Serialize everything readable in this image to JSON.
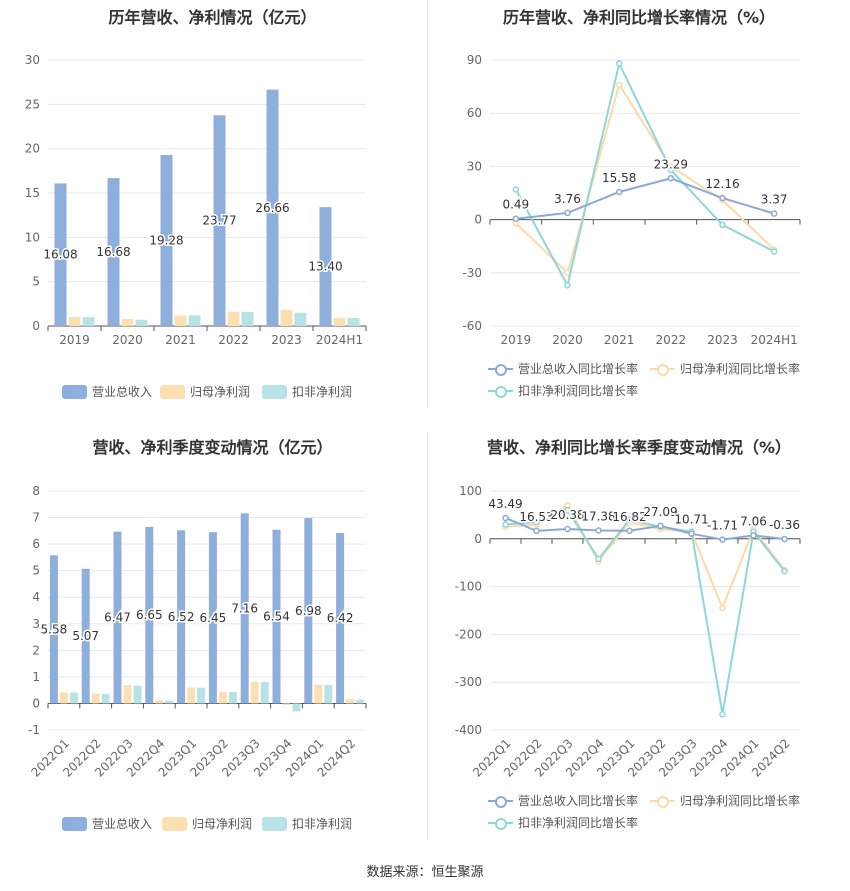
{
  "footer": "数据来源：恒生聚源",
  "legend_labels": {
    "revenue": "营业总收入",
    "net_profit": "归母净利润",
    "deducted_profit": "扣非净利润",
    "revenue_growth": "营业总收入同比增长率",
    "net_profit_growth": "归母净利润同比增长率",
    "deducted_growth": "扣非净利润同比增长率"
  },
  "colors": {
    "revenue": "#8eaedc",
    "net_profit": "#fde0b2",
    "deducted_profit": "#b8e3e6",
    "revenue_line": "#8aa9d6",
    "net_line": "#fcd9a6",
    "deducted_line": "#8ed6d8"
  },
  "chart_data": [
    {
      "type": "bar",
      "title": "历年营收、净利情况（亿元）",
      "categories": [
        "2019",
        "2020",
        "2021",
        "2022",
        "2023",
        "2024H1"
      ],
      "ylim": [
        0,
        30
      ],
      "yticks": [
        0,
        5,
        10,
        15,
        20,
        25,
        30
      ],
      "series": [
        {
          "name": "营业总收入",
          "values": [
            16.08,
            16.68,
            19.28,
            23.77,
            26.66,
            13.4
          ],
          "labels": [
            "16.08",
            "16.68",
            "19.28",
            "23.77",
            "26.66",
            "13.40"
          ]
        },
        {
          "name": "归母净利润",
          "values": [
            1.0,
            0.8,
            1.2,
            1.6,
            1.8,
            0.9
          ]
        },
        {
          "name": "扣非净利润",
          "values": [
            1.0,
            0.7,
            1.2,
            1.6,
            1.5,
            0.9
          ]
        }
      ],
      "legend": "bottom"
    },
    {
      "type": "line",
      "title": "历年营收、净利同比增长率情况（%）",
      "categories": [
        "2019",
        "2020",
        "2021",
        "2022",
        "2023",
        "2024H1"
      ],
      "ylim": [
        -60,
        90
      ],
      "yticks": [
        -60,
        -30,
        0,
        30,
        60,
        90
      ],
      "series": [
        {
          "name": "营业总收入同比增长率",
          "values": [
            0.49,
            3.76,
            15.58,
            23.29,
            12.16,
            3.37
          ],
          "labels": [
            "0.49",
            "3.76",
            "15.58",
            "23.29",
            "12.16",
            "3.37"
          ]
        },
        {
          "name": "归母净利润同比增长率",
          "values": [
            -2,
            -30,
            76,
            30,
            11,
            -17
          ]
        },
        {
          "name": "扣非净利润同比增长率",
          "values": [
            17,
            -37,
            88,
            28,
            -3,
            -18
          ]
        }
      ],
      "legend": "bottom"
    },
    {
      "type": "bar",
      "title": "营收、净利季度变动情况（亿元）",
      "categories": [
        "2022Q1",
        "2022Q2",
        "2022Q3",
        "2022Q4",
        "2023Q1",
        "2023Q2",
        "2023Q3",
        "2023Q4",
        "2024Q1",
        "2024Q2"
      ],
      "ylim": [
        -1,
        8
      ],
      "yticks": [
        -1,
        0,
        1,
        2,
        3,
        4,
        5,
        6,
        7,
        8
      ],
      "series": [
        {
          "name": "营业总收入",
          "values": [
            5.58,
            5.07,
            6.47,
            6.65,
            6.52,
            6.45,
            7.16,
            6.54,
            6.98,
            6.42
          ],
          "labels": [
            "5.58",
            "5.07",
            "6.47",
            "6.65",
            "6.52",
            "6.45",
            "7.16",
            "6.54",
            "6.98",
            "6.42"
          ]
        },
        {
          "name": "归母净利润",
          "values": [
            0.42,
            0.37,
            0.69,
            0.12,
            0.6,
            0.44,
            0.82,
            -0.06,
            0.7,
            0.16
          ]
        },
        {
          "name": "扣非净利润",
          "values": [
            0.41,
            0.36,
            0.67,
            0.11,
            0.59,
            0.43,
            0.81,
            -0.3,
            0.69,
            0.15
          ]
        }
      ],
      "legend": "bottom"
    },
    {
      "type": "line",
      "title": "营收、净利同比增长率季度变动情况（%）",
      "categories": [
        "2022Q1",
        "2022Q2",
        "2022Q3",
        "2022Q4",
        "2023Q1",
        "2023Q2",
        "2023Q3",
        "2023Q4",
        "2024Q1",
        "2024Q2"
      ],
      "ylim": [
        -400,
        100
      ],
      "yticks": [
        -400,
        -300,
        -200,
        -100,
        0,
        100
      ],
      "series": [
        {
          "name": "营业总收入同比增长率",
          "values": [
            43.49,
            16.53,
            20.38,
            17.38,
            16.82,
            27.09,
            10.71,
            -1.71,
            7.06,
            -0.36
          ],
          "labels": [
            "43.49",
            "16.53",
            "20.38",
            "17.38",
            "16.82",
            "27.09",
            "10.71",
            "-1.71",
            "7.06",
            "-0.36"
          ]
        },
        {
          "name": "归母净利润同比增长率",
          "values": [
            25,
            30,
            70,
            -47,
            35,
            20,
            15,
            -145,
            20,
            -65
          ]
        },
        {
          "name": "扣非净利润同比增长率",
          "values": [
            30,
            35,
            60,
            -42,
            40,
            25,
            15,
            -367,
            15,
            -68
          ]
        }
      ],
      "legend": "bottom"
    }
  ]
}
